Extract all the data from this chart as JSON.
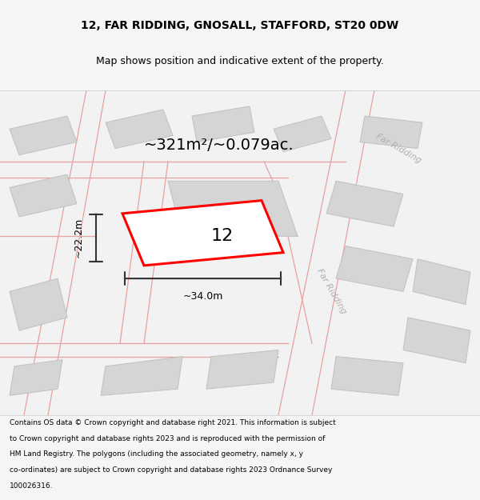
{
  "title_line1": "12, FAR RIDDING, GNOSALL, STAFFORD, ST20 0DW",
  "title_line2": "Map shows position and indicative extent of the property.",
  "area_text": "~321m²/~0.079ac.",
  "label_number": "12",
  "dim_width": "~34.0m",
  "dim_height": "~22.2m",
  "footer_lines": [
    "Contains OS data © Crown copyright and database right 2021. This information is subject",
    "to Crown copyright and database rights 2023 and is reproduced with the permission of",
    "HM Land Registry. The polygons (including the associated geometry, namely x, y",
    "co-ordinates) are subject to Crown copyright and database rights 2023 Ordnance Survey",
    "100026316."
  ],
  "bg_color": "#f5f5f5",
  "highlight_color": "#ff0000",
  "dim_color": "#333333",
  "title_color": "#000000",
  "footer_color": "#000000",
  "road_line_color": "#e8a0a0",
  "building_fc": "#d5d5d5",
  "building_ec": "#c0c0c0",
  "road_label_color": "#b0b0b0",
  "map_bg": "#f2f2f2"
}
